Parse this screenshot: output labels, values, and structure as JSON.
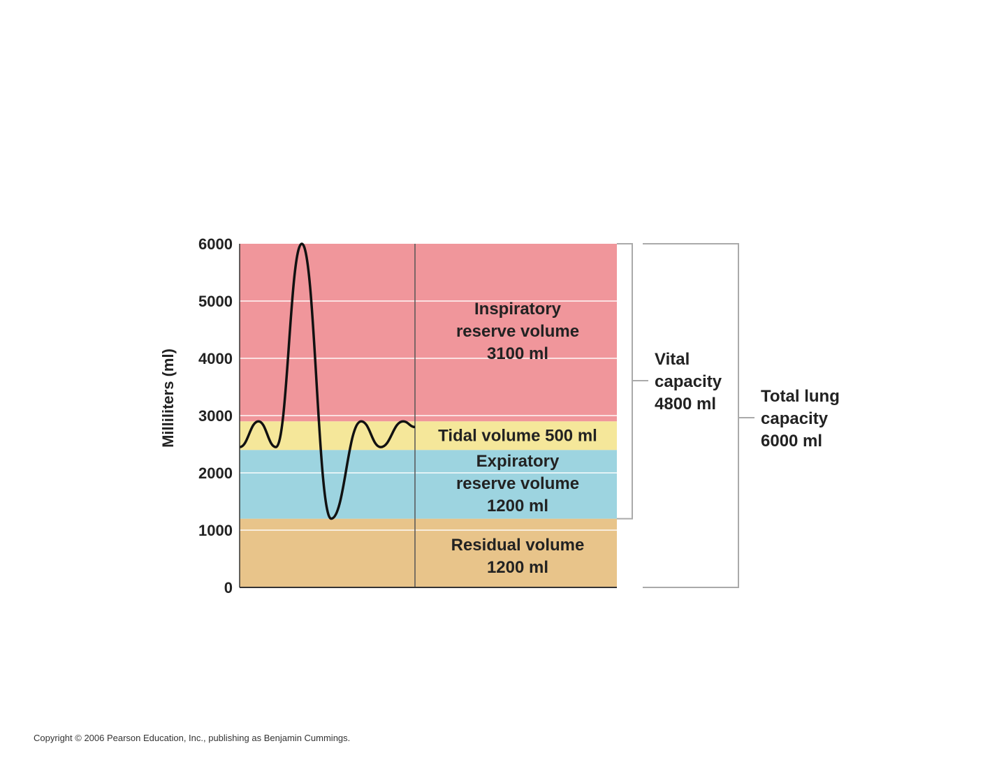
{
  "chart_data": {
    "type": "area",
    "ylabel": "Milliliters (ml)",
    "ylim": [
      0,
      6000
    ],
    "yticks": [
      "0",
      "1000",
      "2000",
      "3000",
      "4000",
      "5000",
      "6000"
    ],
    "grid": true,
    "bands": [
      {
        "name": "residual",
        "from": 0,
        "to": 1200,
        "color": "#e8c48a",
        "lines": [
          "Residual volume",
          "1200 ml"
        ]
      },
      {
        "name": "expiratory-reserve",
        "from": 1200,
        "to": 2400,
        "color": "#9dd4e0",
        "lines": [
          "Expiratory",
          "reserve volume",
          "1200 ml"
        ]
      },
      {
        "name": "tidal",
        "from": 2400,
        "to": 2900,
        "color": "#f5e79a",
        "lines": [
          "Tidal volume 500 ml"
        ]
      },
      {
        "name": "inspiratory-reserve",
        "from": 2900,
        "to": 6000,
        "color": "#f0969b",
        "lines": [
          "Inspiratory",
          "reserve volume",
          "3100 ml"
        ]
      }
    ],
    "spirometer_trace_ml": [
      2450,
      2900,
      2450,
      6000,
      1200,
      2900,
      2450,
      2900,
      2800
    ],
    "brackets": [
      {
        "name": "vital-capacity",
        "from": 1200,
        "to": 6000,
        "lines": [
          "Vital",
          "capacity",
          "4800 ml"
        ]
      },
      {
        "name": "total-lung-capacity",
        "from": 0,
        "to": 6000,
        "lines": [
          "Total lung",
          "capacity",
          "6000 ml"
        ]
      }
    ]
  },
  "copyright": "Copyright © 2006 Pearson Education, Inc., publishing as Benjamin Cummings."
}
